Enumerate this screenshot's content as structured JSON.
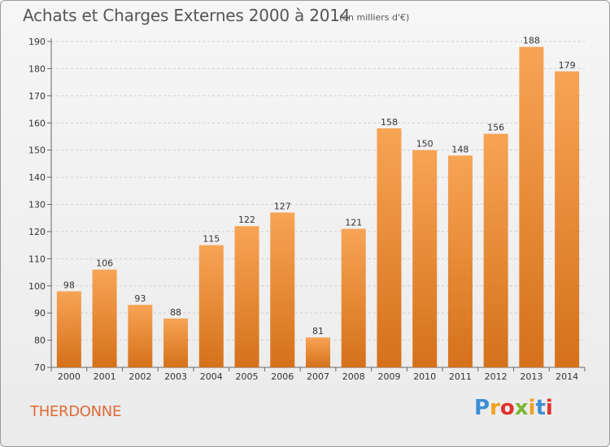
{
  "title": "Achats et Charges Externes 2000 à 2014",
  "subtitle": "(en milliers d'€)",
  "commune": "THERDONNE",
  "logo": {
    "letters": [
      "P",
      "r",
      "o",
      "x",
      "i",
      "t",
      "i"
    ],
    "colors": [
      "#3c8fd6",
      "#f0a020",
      "#e0322c",
      "#7ab830",
      "#f0a020",
      "#3c8fd6",
      "#e0322c"
    ]
  },
  "colors": {
    "bar": "#f08c30",
    "bar_light": "#f7a455",
    "bar_dark": "#d5711a",
    "commune": "#e06a36"
  },
  "chart_data": {
    "type": "bar",
    "categories": [
      "2000",
      "2001",
      "2002",
      "2003",
      "2004",
      "2005",
      "2006",
      "2007",
      "2008",
      "2009",
      "2010",
      "2011",
      "2012",
      "2013",
      "2014"
    ],
    "values": [
      98,
      106,
      93,
      88,
      115,
      122,
      127,
      81,
      121,
      158,
      150,
      148,
      156,
      188,
      179
    ],
    "ylim": [
      70,
      190
    ],
    "yticks": [
      70,
      80,
      90,
      100,
      110,
      120,
      130,
      140,
      150,
      160,
      170,
      180,
      190
    ],
    "grid": true,
    "xlabel": "",
    "ylabel": ""
  }
}
